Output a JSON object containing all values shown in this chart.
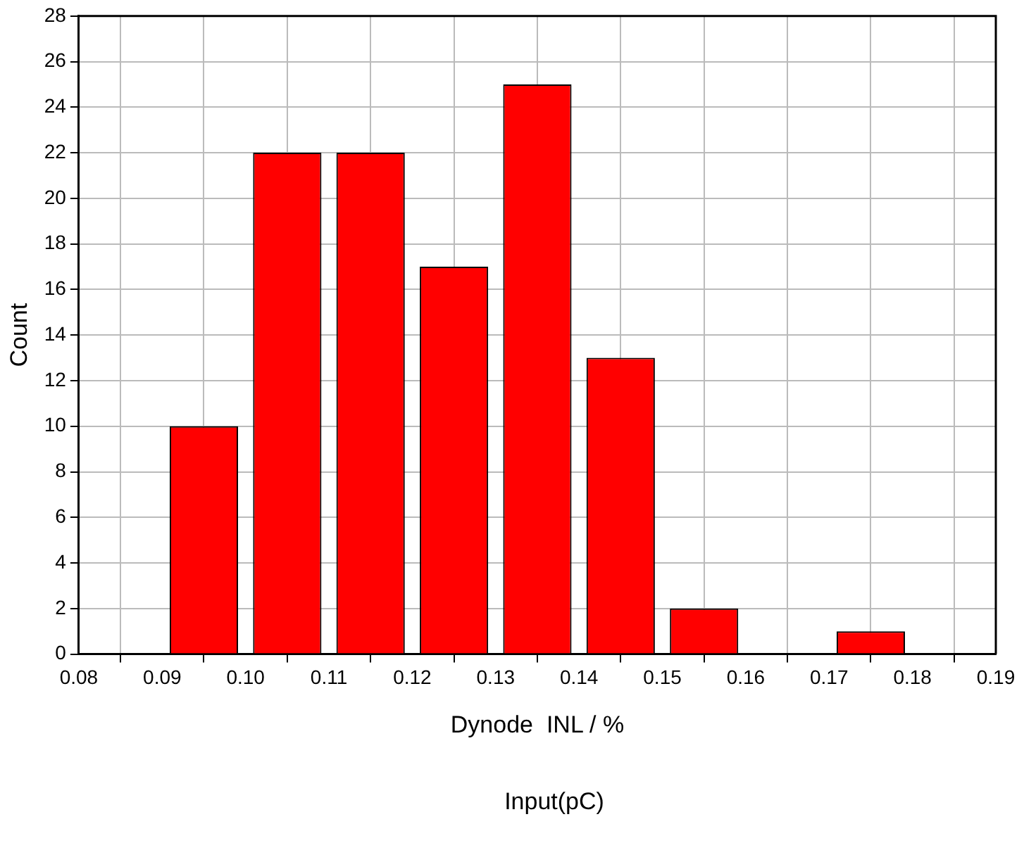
{
  "chart_data": {
    "type": "histogram",
    "xlabel": "Dynode  INL / %",
    "ylabel": "Count",
    "bins": [
      0.09,
      0.1,
      0.11,
      0.12,
      0.13,
      0.14,
      0.15,
      0.16,
      0.17,
      0.18,
      0.19
    ],
    "values": [
      10,
      22,
      22,
      17,
      25,
      13,
      2,
      0,
      1,
      0
    ],
    "color": "#ff0000",
    "xlim": [
      0.08,
      0.19
    ],
    "xticks": [
      0.08,
      0.09,
      {
        "value": 0.1,
        "label": "0.10"
      },
      0.11,
      0.12,
      0.13,
      0.14,
      0.15,
      0.16,
      0.17,
      0.18,
      0.19
    ],
    "ylim": [
      0,
      28
    ],
    "yticks": [
      0,
      2,
      4,
      6,
      8,
      10,
      12,
      14,
      16,
      18,
      20,
      22,
      24,
      26,
      28
    ],
    "grid": true,
    "annotations": [
      "Input(pC)"
    ]
  }
}
